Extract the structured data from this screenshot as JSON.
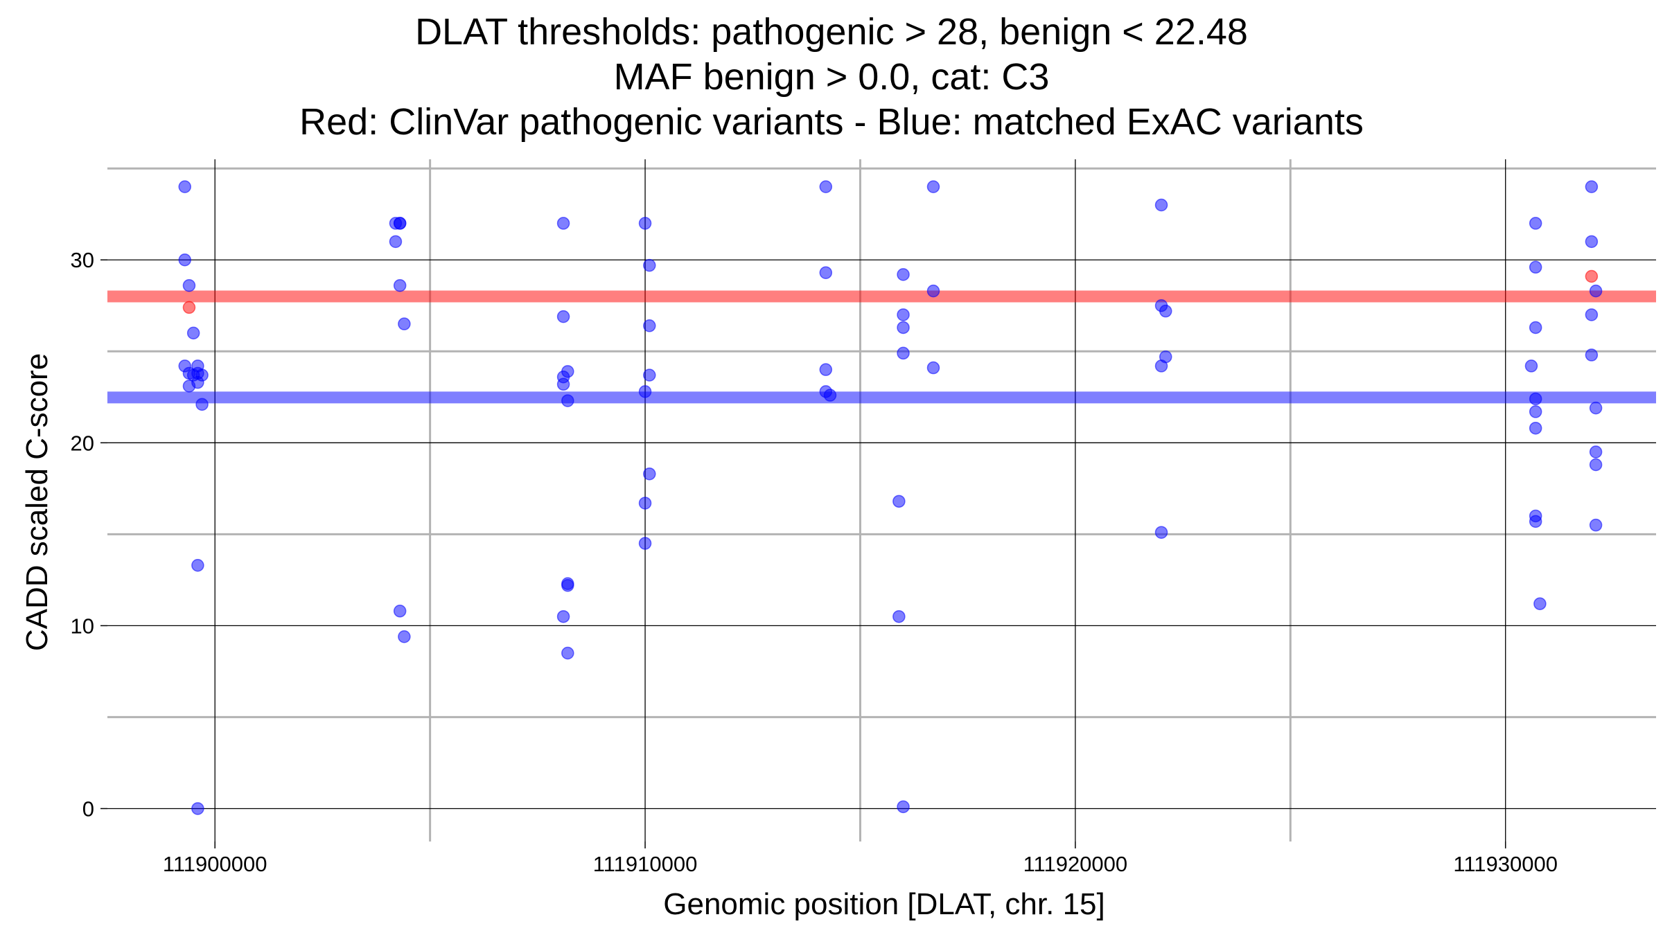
{
  "chart_data": {
    "type": "scatter",
    "title_lines": [
      "DLAT thresholds: pathogenic > 28, benign < 22.48",
      "MAF benign > 0.0, cat: C3",
      "Red: ClinVar pathogenic variants - Blue: matched ExAC variants"
    ],
    "xlabel": "Genomic position [DLAT, chr. 15]",
    "ylabel": "CADD scaled C-score",
    "xlim": [
      111897500,
      111933500
    ],
    "ylim": [
      -1.8,
      35.5
    ],
    "x_major_ticks": [
      111900000,
      111910000,
      111920000,
      111930000
    ],
    "x_minor_ticks": [
      111905000,
      111915000,
      111925000
    ],
    "y_major_ticks": [
      0,
      10,
      20,
      30
    ],
    "y_minor_ticks": [
      5,
      15,
      25,
      35
    ],
    "grid": true,
    "thresholds": [
      {
        "name": "pathogenic",
        "value": 28,
        "color": "#ff0000"
      },
      {
        "name": "benign",
        "value": 22.48,
        "color": "#0000ff"
      }
    ],
    "series": [
      {
        "color": "#0000ff",
        "x": [
          111899300,
          111899300,
          111899300,
          111899400,
          111899400,
          111899400,
          111899500,
          111899500,
          111899600,
          111899600,
          111899600,
          111899600,
          111899600,
          111899700,
          111899700,
          111904200,
          111904200,
          111904300,
          111904300,
          111904300,
          111904300,
          111904400,
          111904400,
          111908100,
          111908100,
          111908100,
          111908100,
          111908100,
          111908200,
          111908200,
          111908200,
          111908200,
          111908200,
          111910000,
          111910000,
          111910000,
          111910000,
          111910100,
          111910100,
          111910100,
          111910100,
          111914200,
          111914200,
          111914200,
          111914200,
          111914300,
          111915900,
          111915900,
          111916000,
          111916000,
          111916000,
          111916000,
          111916000,
          111916700,
          111916700,
          111916700,
          111922000,
          111922000,
          111922000,
          111922000,
          111922100,
          111922100,
          111930600,
          111930700,
          111930700,
          111930700,
          111930700,
          111930700,
          111930700,
          111930700,
          111930700,
          111930800,
          111932000,
          111932000,
          111932000,
          111932000,
          111932100,
          111932100,
          111932100,
          111932100,
          111932100
        ],
        "y": [
          34,
          30,
          24.2,
          23.8,
          23.1,
          28.6,
          26,
          23.7,
          0,
          13.3,
          24.2,
          23.8,
          23.3,
          23.7,
          22.1,
          32,
          31,
          28.6,
          32,
          32,
          10.8,
          26.5,
          9.4,
          26.9,
          23.6,
          23.2,
          32,
          10.5,
          23.9,
          22.3,
          12.2,
          12.3,
          8.5,
          32,
          22.8,
          16.7,
          14.5,
          29.7,
          26.4,
          23.7,
          18.3,
          34,
          29.3,
          24,
          22.8,
          22.6,
          16.8,
          10.5,
          29.2,
          27,
          26.3,
          24.9,
          0.1,
          34,
          28.3,
          24.1,
          33,
          27.5,
          24.2,
          15.1,
          27.2,
          24.7,
          24.2,
          32,
          29.6,
          26.3,
          22.4,
          21.7,
          20.8,
          16,
          15.7,
          11.2,
          34,
          31,
          27,
          24.8,
          28.3,
          21.9,
          19.5,
          18.8,
          15.5
        ]
      },
      {
        "color": "#ff0000",
        "x": [
          111899400,
          111932000
        ],
        "y": [
          27.4,
          29.1
        ]
      }
    ]
  }
}
